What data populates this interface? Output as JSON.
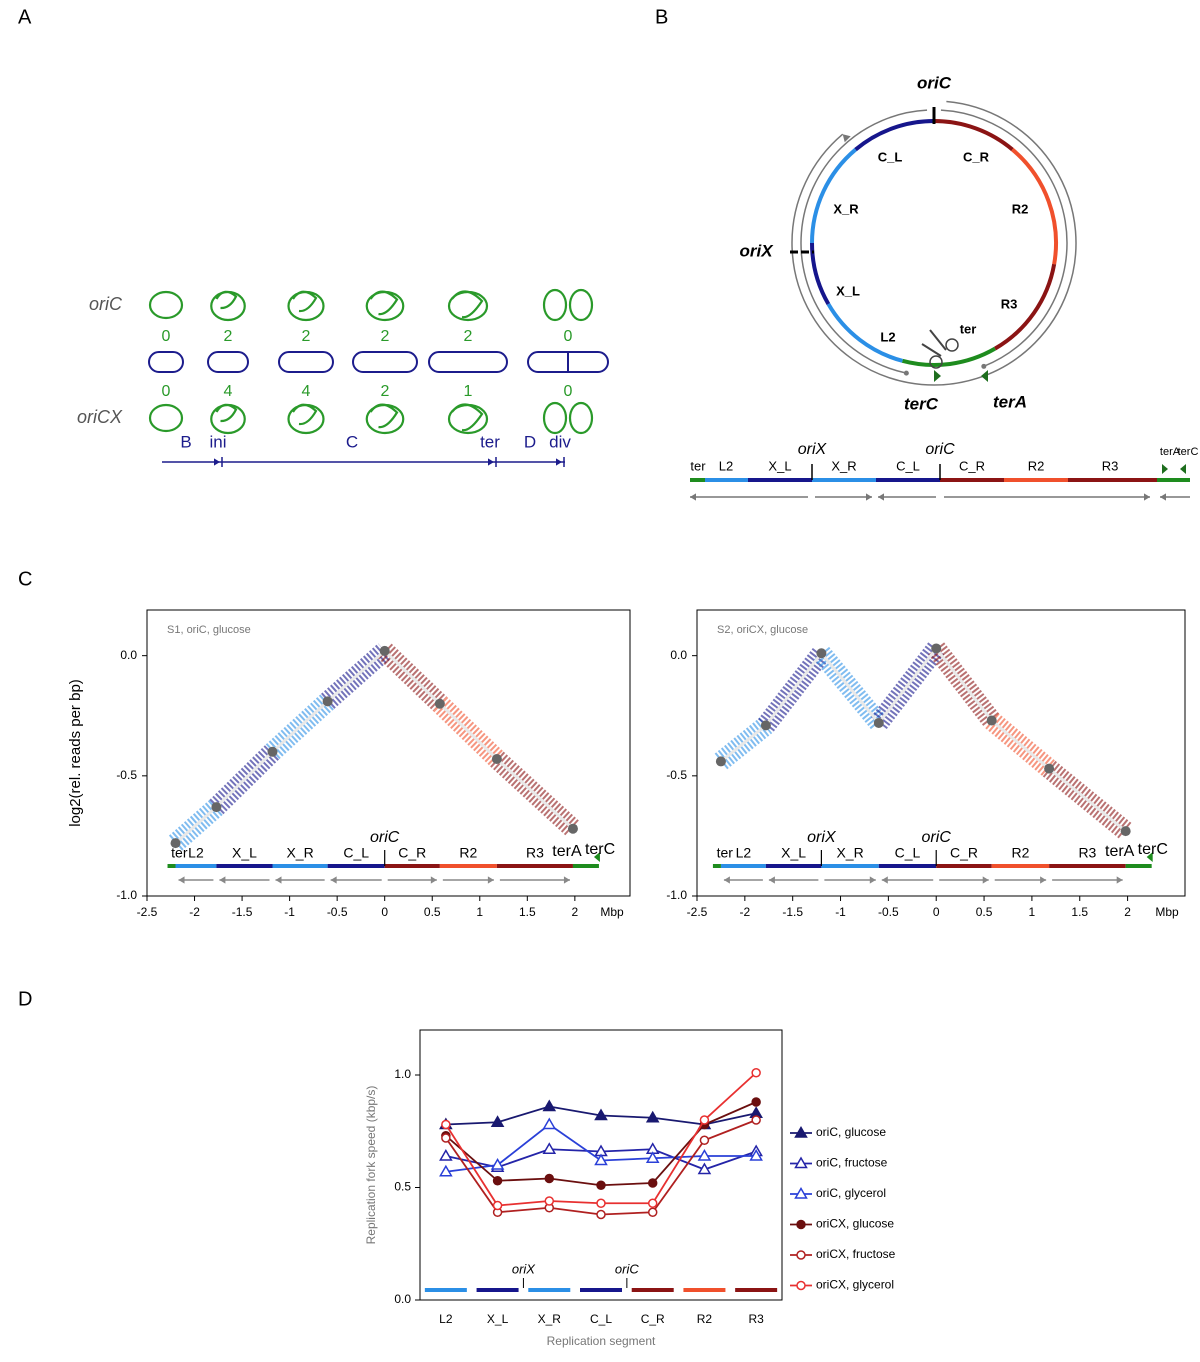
{
  "panel_a": {
    "label": "A",
    "rows": [
      "oriC",
      "oriCX"
    ],
    "counts": [
      [
        0,
        2,
        2,
        2,
        2,
        0
      ],
      [
        0,
        4,
        4,
        2,
        1,
        0
      ]
    ],
    "phases": [
      "B",
      "ini",
      "C",
      "ter",
      "D",
      "div"
    ]
  },
  "panel_b": {
    "label": "B",
    "origin": "oriC",
    "second_origin": "oriX",
    "circle_labels": [
      "C_L",
      "C_R",
      "X_R",
      "R2",
      "X_L",
      "R3",
      "L2",
      "ter"
    ],
    "termini": [
      "terC",
      "terA"
    ],
    "map_labels": [
      "ter",
      "L2",
      "X_L",
      "X_R",
      "C_L",
      "C_R",
      "R2",
      "R3",
      "terA",
      "terC"
    ],
    "map_origins": [
      "oriX",
      "oriC"
    ]
  },
  "panel_c_label": "C",
  "panel_d_label": "D",
  "chart_data": [
    {
      "type": "line",
      "title": "S1, oriC, glucose",
      "ylabel": "log2(rel. reads per bp)",
      "xlabel": "Mbp",
      "x": [
        -2.2,
        -1.77,
        -1.18,
        -0.6,
        0,
        0.58,
        1.18,
        1.98
      ],
      "values": [
        -0.78,
        -0.63,
        -0.4,
        -0.19,
        0.02,
        -0.2,
        -0.43,
        -0.72
      ],
      "segments": [
        "L2",
        "X_L",
        "X_R",
        "C_L",
        "C_R",
        "R2",
        "R3"
      ],
      "segment_colors": [
        "#2b8fe6",
        "#16168c",
        "#2b8fe6",
        "#16168c",
        "#8b1414",
        "#f0502c",
        "#8b1414"
      ],
      "ter_labels": [
        "ter",
        "terA",
        "terC"
      ],
      "ter_color": "#1e8c1e",
      "origin_labels": [
        null,
        null,
        null,
        null,
        "oriC",
        null,
        null,
        null
      ],
      "xlim": [
        -2.5,
        2.58
      ],
      "ylim": [
        -1.0,
        0.19
      ],
      "xticks": [
        -2.5,
        -2,
        -1.5,
        -1,
        -0.5,
        0,
        0.5,
        1,
        1.5,
        2
      ],
      "yticks": [
        {
          "value": 0,
          "label": "0.0"
        },
        {
          "value": -0.5,
          "label": "-0.5"
        },
        {
          "value": -1.0,
          "label": "-1.0"
        }
      ]
    },
    {
      "type": "line",
      "title": "S2, oriCX, glucose",
      "xlabel": "Mbp",
      "x": [
        -2.25,
        -1.78,
        -1.2,
        -0.6,
        0,
        0.58,
        1.18,
        1.98
      ],
      "values": [
        -0.44,
        -0.29,
        0.01,
        -0.28,
        0.03,
        -0.27,
        -0.47,
        -0.73
      ],
      "segments": [
        "L2",
        "X_L",
        "X_R",
        "C_L",
        "C_R",
        "R2",
        "R3"
      ],
      "segment_colors": [
        "#2b8fe6",
        "#16168c",
        "#2b8fe6",
        "#16168c",
        "#8b1414",
        "#f0502c",
        "#8b1414"
      ],
      "ter_labels": [
        "ter",
        "terA",
        "terC"
      ],
      "ter_color": "#1e8c1e",
      "origin_labels": [
        null,
        null,
        "oriX",
        null,
        "oriC",
        null,
        null,
        null
      ],
      "xlim": [
        -2.5,
        2.6
      ],
      "ylim": [
        -1.0,
        0.19
      ],
      "xticks": [
        -2.5,
        -2,
        -1.5,
        -1,
        -0.5,
        0,
        0.5,
        1,
        1.5,
        2
      ],
      "yticks": [
        {
          "value": 0,
          "label": "0.0"
        },
        {
          "value": -0.5,
          "label": "-0.5"
        },
        {
          "value": -1.0,
          "label": "-1.0"
        }
      ]
    },
    {
      "type": "line",
      "ylabel": "Replication fork speed (kbp/s)",
      "xlabel": "Replication segment",
      "categories": [
        "L2",
        "X_L",
        "X_R",
        "C_L",
        "C_R",
        "R2",
        "R3"
      ],
      "series": [
        {
          "name": "oriC, glucose",
          "color": "#191970",
          "marker": "triangle",
          "filled": true,
          "values": [
            0.78,
            0.79,
            0.86,
            0.82,
            0.81,
            0.78,
            0.83
          ]
        },
        {
          "name": "oriC, fructose",
          "color": "#2424a8",
          "marker": "triangle",
          "filled": false,
          "values": [
            0.64,
            0.59,
            0.67,
            0.66,
            0.67,
            0.58,
            0.66
          ]
        },
        {
          "name": "oriC, glycerol",
          "color": "#2a40d8",
          "marker": "triangle",
          "filled": false,
          "values": [
            0.57,
            0.6,
            0.78,
            0.62,
            0.63,
            0.64,
            0.64
          ]
        },
        {
          "name": "oriCX, glucose",
          "color": "#6b0f0f",
          "marker": "circle",
          "filled": true,
          "values": [
            0.73,
            0.53,
            0.54,
            0.51,
            0.52,
            0.78,
            0.88
          ]
        },
        {
          "name": "oriCX, fructose",
          "color": "#b02020",
          "marker": "circle",
          "filled": false,
          "values": [
            0.72,
            0.39,
            0.41,
            0.38,
            0.39,
            0.71,
            0.8
          ]
        },
        {
          "name": "oriCX, glycerol",
          "color": "#e83030",
          "marker": "circle",
          "filled": false,
          "values": [
            0.78,
            0.42,
            0.44,
            0.43,
            0.43,
            0.8,
            1.01
          ]
        }
      ],
      "segment_colors": [
        "#2b8fe6",
        "#16168c",
        "#2b8fe6",
        "#16168c",
        "#8b1414",
        "#f0502c",
        "#8b1414"
      ],
      "origin_labels": [
        null,
        "oriX",
        null,
        "oriC",
        null,
        null
      ],
      "ylim": [
        0,
        1.2
      ],
      "yticks": [
        {
          "value": 0,
          "label": "0.0"
        },
        {
          "value": 0.5,
          "label": "0.5"
        },
        {
          "value": 1.0,
          "label": "1.0"
        }
      ]
    }
  ]
}
